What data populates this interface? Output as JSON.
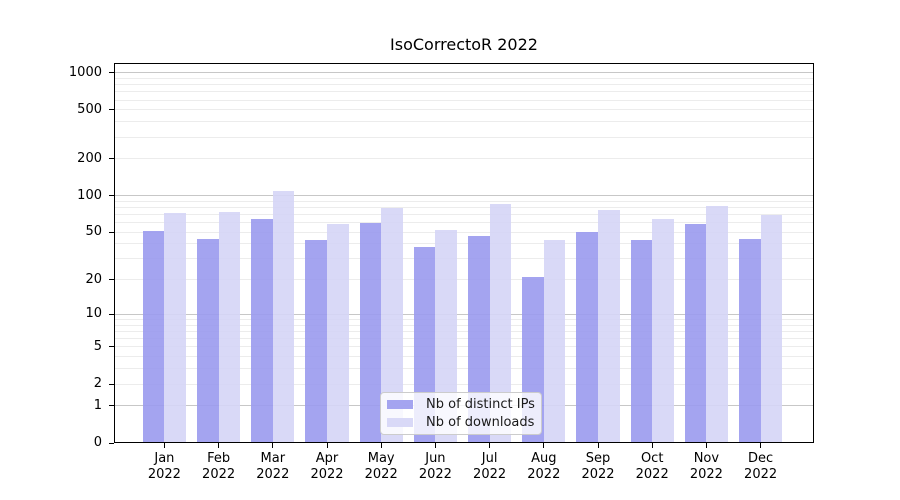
{
  "title": "IsoCorrectoR 2022",
  "chart_data": {
    "type": "bar",
    "title": "IsoCorrectoR 2022",
    "categories": [
      "Jan 2022",
      "Feb 2022",
      "Mar 2022",
      "Apr 2022",
      "May 2022",
      "Jun 2022",
      "Jul 2022",
      "Aug 2022",
      "Sep 2022",
      "Oct 2022",
      "Nov 2022",
      "Dec 2022"
    ],
    "x_months": [
      "Jan",
      "Feb",
      "Mar",
      "Apr",
      "May",
      "Jun",
      "Jul",
      "Aug",
      "Sep",
      "Oct",
      "Nov",
      "Dec"
    ],
    "x_year": "2022",
    "series": [
      {
        "name": "Nb of distinct IPs",
        "color": "#9a9aee",
        "values": [
          51,
          44,
          64,
          43,
          60,
          38,
          47,
          21,
          50,
          43,
          59,
          44
        ]
      },
      {
        "name": "Nb of downloads",
        "color": "#d5d5f6",
        "values": [
          72,
          73,
          110,
          58,
          79,
          52,
          86,
          43,
          76,
          64,
          83,
          69
        ]
      }
    ],
    "xlabel": "",
    "ylabel": "",
    "y_scale": "log1p",
    "y_ticks": [
      0,
      1,
      2,
      5,
      10,
      20,
      50,
      100,
      200,
      500,
      1000
    ],
    "y_major_grid": [
      1,
      10,
      100,
      1000
    ],
    "y_minor_grid": [
      2,
      3,
      4,
      5,
      6,
      7,
      8,
      9,
      20,
      30,
      40,
      50,
      60,
      70,
      80,
      90,
      200,
      300,
      400,
      500,
      600,
      700,
      800,
      900
    ],
    "ylim": [
      0,
      1200
    ],
    "grid": true,
    "legend_position": "lower center"
  },
  "legend": {
    "items": [
      {
        "label": "Nb of distinct IPs"
      },
      {
        "label": "Nb of downloads"
      }
    ]
  },
  "colors": {
    "bar_distinct_ips": "#9a9aee",
    "bar_downloads": "#d5d5f6",
    "grid_major": "#c7c7c7",
    "grid_minor": "#ececec",
    "axis": "#000000",
    "legend_border": "#cccccc",
    "background": "#ffffff"
  }
}
